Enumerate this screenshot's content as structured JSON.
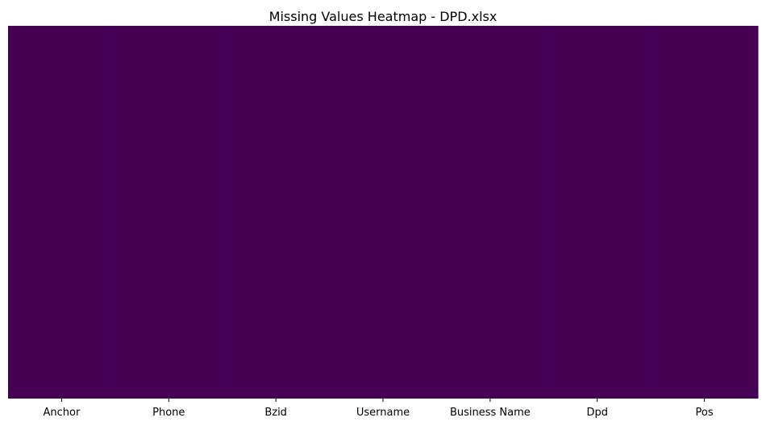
{
  "chart_data": {
    "type": "heatmap",
    "title": "Missing Values Heatmap - DPD.xlsx",
    "xlabel": "",
    "ylabel": "",
    "categories": [
      "Anchor",
      "Phone",
      "Bzid",
      "Username",
      "Business Name",
      "Dpd",
      "Pos"
    ],
    "values": [
      0,
      0,
      0,
      0,
      0,
      0,
      0
    ],
    "colorbar": false,
    "grid": false,
    "legend": "none",
    "colors": {
      "not_missing": "#440154",
      "missing": "#fde725"
    }
  }
}
